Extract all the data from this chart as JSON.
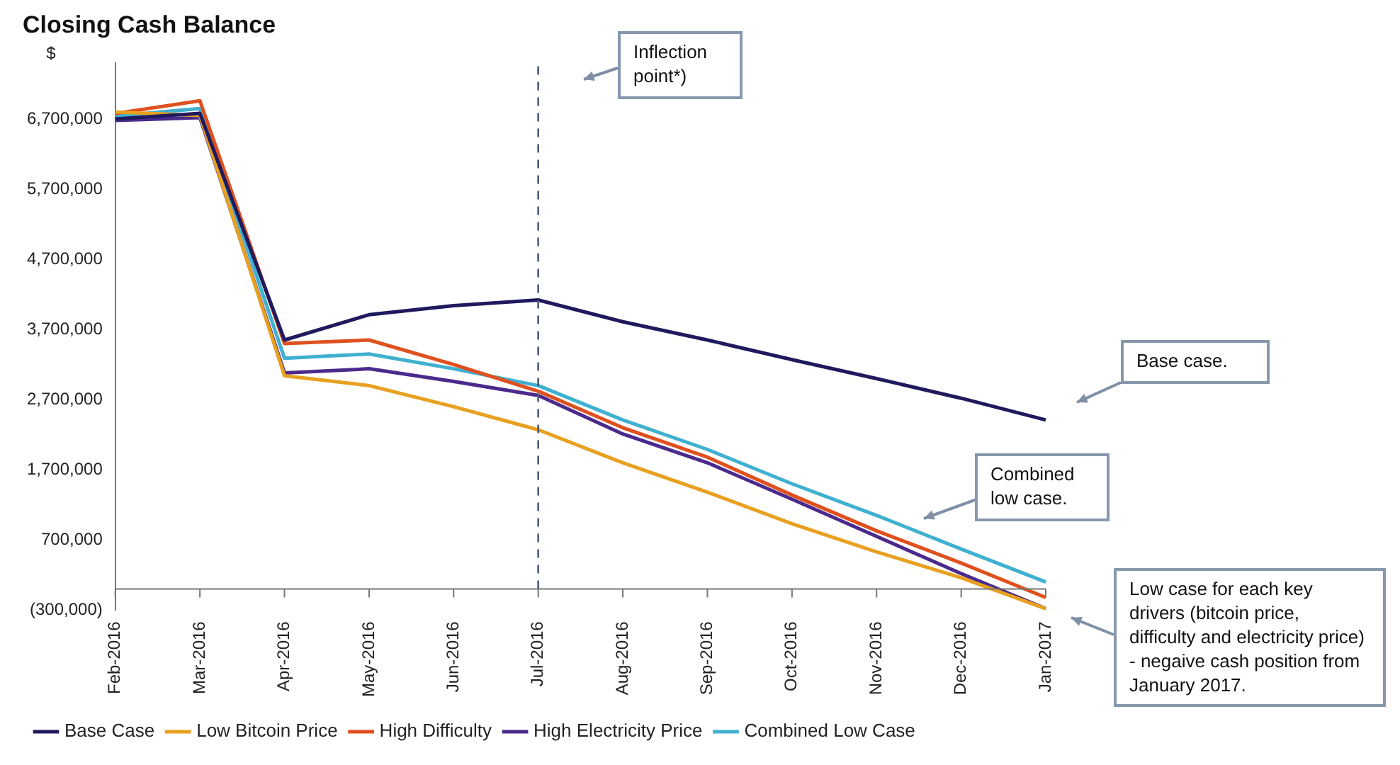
{
  "chart_data": {
    "type": "line",
    "title": "Closing Cash Balance",
    "ylabel": "$",
    "categories": [
      "Feb-2016",
      "Mar-2016",
      "Apr-2016",
      "May-2016",
      "Jun-2016",
      "Jul-2016",
      "Aug-2016",
      "Sep-2016",
      "Oct-2016",
      "Nov-2016",
      "Dec-2016",
      "Jan-2017"
    ],
    "series": [
      {
        "name": "Base Case",
        "color": "#1f1a5e",
        "values": [
          6700000,
          6780000,
          3550000,
          3910000,
          4040000,
          4120000,
          3810000,
          3550000,
          3270000,
          3000000,
          2720000,
          2410000
        ]
      },
      {
        "name": "Low Bitcoin Price",
        "color": "#e8a020",
        "values": [
          6800000,
          6750000,
          3040000,
          2900000,
          2600000,
          2270000,
          1800000,
          1380000,
          930000,
          530000,
          160000,
          -280000
        ]
      },
      {
        "name": "High Difficulty",
        "color": "#e0501e",
        "values": [
          6780000,
          6960000,
          3500000,
          3550000,
          3200000,
          2820000,
          2300000,
          1880000,
          1340000,
          830000,
          370000,
          -120000
        ]
      },
      {
        "name": "High Electricity Price",
        "color": "#4b2a8c",
        "values": [
          6680000,
          6720000,
          3080000,
          3140000,
          2960000,
          2760000,
          2210000,
          1800000,
          1280000,
          750000,
          220000,
          -280000
        ]
      },
      {
        "name": "Combined Low Case",
        "color": "#3fb0d0",
        "values": [
          6740000,
          6850000,
          3290000,
          3350000,
          3140000,
          2900000,
          2410000,
          1990000,
          1500000,
          1050000,
          570000,
          100000
        ]
      }
    ],
    "ylim": [
      -300000,
      7500000
    ],
    "yticks": [
      {
        "value": -300000,
        "label": "(300,000)"
      },
      {
        "value": 700000,
        "label": "700,000"
      },
      {
        "value": 1700000,
        "label": "1,700,000"
      },
      {
        "value": 2700000,
        "label": "2,700,000"
      },
      {
        "value": 3700000,
        "label": "3,700,000"
      },
      {
        "value": 4700000,
        "label": "4,700,000"
      },
      {
        "value": 5700000,
        "label": "5,700,000"
      },
      {
        "value": 6700000,
        "label": "6,700,000"
      }
    ],
    "ref_lines": [
      {
        "axis": "x",
        "value": "Jul-2016",
        "color": "#4a5a7a",
        "line_style": "dashed"
      }
    ],
    "annotations": [
      "Inflection point*)",
      "Base case.",
      "Combined low case.",
      "Low case for each key drivers (bitcoin price, difficulty and electricity price) - negaive cash position from January 2017."
    ],
    "grid": false,
    "legend": "bottom",
    "marker": "none",
    "line_style": "solid"
  }
}
